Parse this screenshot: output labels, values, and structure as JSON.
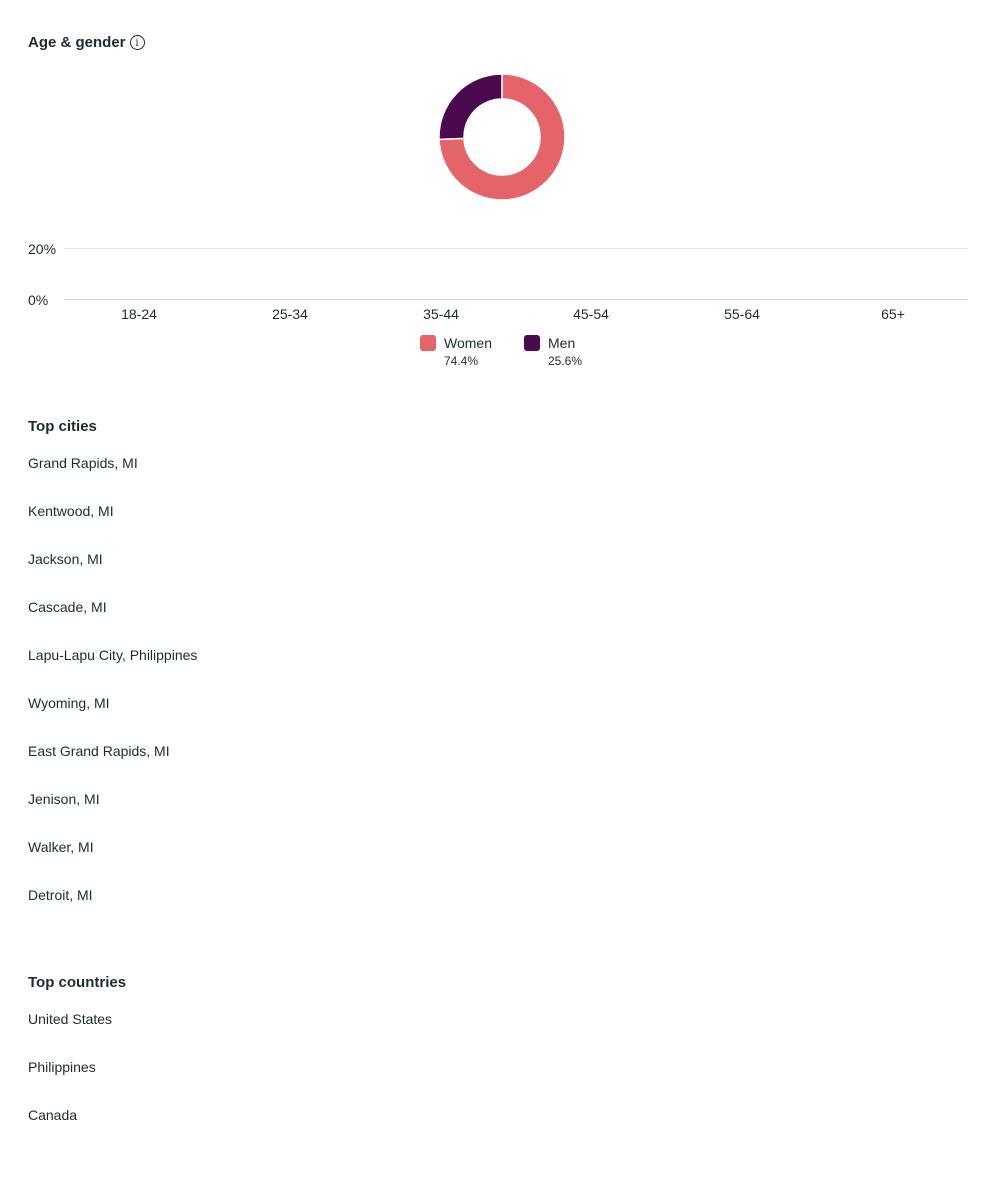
{
  "age_gender": {
    "title": "Age & gender",
    "info_icon_glyph": "i",
    "colors": {
      "women": "#e5646a",
      "men": "#4b0a4d"
    }
  },
  "chart_data": [
    {
      "type": "pie",
      "donut": true,
      "labels": [
        "Women",
        "Men"
      ],
      "values": [
        74.4,
        25.6
      ],
      "colors": [
        "#e5646a",
        "#4b0a4d"
      ]
    },
    {
      "type": "bar",
      "categories": [
        "18-24",
        "25-34",
        "35-44",
        "45-54",
        "55-64",
        "65+"
      ],
      "series": [
        {
          "name": "Women",
          "values": [
            0,
            0,
            0,
            0,
            0,
            0
          ]
        },
        {
          "name": "Men",
          "values": [
            0,
            0,
            0,
            0,
            0,
            0
          ]
        }
      ],
      "yticks": [
        "0%",
        "20%"
      ],
      "ylim": [
        0,
        20
      ],
      "grid": true
    }
  ],
  "legend": [
    {
      "name": "Women",
      "value": "74.4%",
      "color": "#e5646a"
    },
    {
      "name": "Men",
      "value": "25.6%",
      "color": "#4b0a4d"
    }
  ],
  "top_cities": {
    "title": "Top cities",
    "items": [
      "Grand Rapids, MI",
      "Kentwood, MI",
      "Jackson, MI",
      "Cascade, MI",
      "Lapu-Lapu City, Philippines",
      "Wyoming, MI",
      "East Grand Rapids, MI",
      "Jenison, MI",
      "Walker, MI",
      "Detroit, MI"
    ]
  },
  "top_countries": {
    "title": "Top countries",
    "items": [
      "United States",
      "Philippines",
      "Canada"
    ]
  }
}
